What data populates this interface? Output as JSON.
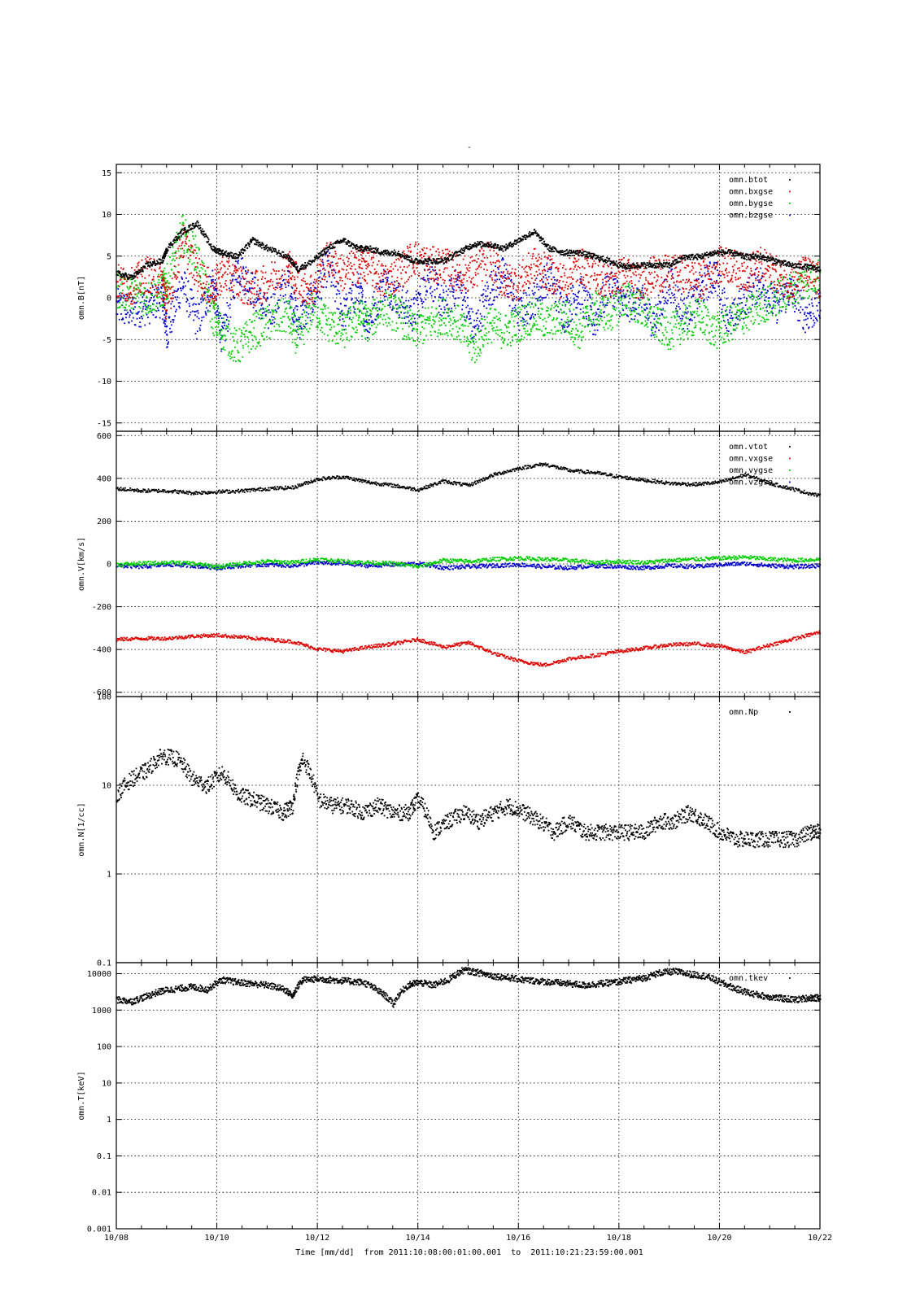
{
  "figure": {
    "title": "-",
    "xaxis_caption": "Time [mm/dd]  from 2011:10:08:00:01:00.001  to  2011:10:21:23:59:00.001"
  },
  "chart_data": [
    {
      "type": "scatter",
      "ylabel": "omn.B[nT]",
      "xlim": [
        "10/08",
        "10/22"
      ],
      "ylim": [
        -16,
        16
      ],
      "yticks": [
        "15",
        "10",
        "5",
        "0",
        "-5",
        "-10",
        "-15"
      ],
      "xticks": [
        "10/08",
        "10/10",
        "10/12",
        "10/14",
        "10/16",
        "10/18",
        "10/20",
        "10/22"
      ],
      "grid": true,
      "legend": "top-right",
      "series": [
        {
          "name": "omn.btot",
          "color": "#000000",
          "x": [
            0,
            0.3,
            0.6,
            0.9,
            1.0,
            1.3,
            1.6,
            1.9,
            2.1,
            2.4,
            2.7,
            3.0,
            3.4,
            3.6,
            3.9,
            4.2,
            4.5,
            4.8,
            5.0,
            5.3,
            5.6,
            5.9,
            6.2,
            6.5,
            6.8,
            7.1,
            7.4,
            7.7,
            8.0,
            8.3,
            8.6,
            8.9,
            9.2,
            9.5,
            9.8,
            10.1,
            10.4,
            10.7,
            11.0,
            11.3,
            11.6,
            11.9,
            12.2,
            12.5,
            12.8,
            13.1,
            13.4,
            13.7,
            14.0
          ],
          "values": [
            3,
            2.5,
            4,
            4.5,
            6,
            8,
            9,
            6,
            5.5,
            5,
            7,
            6,
            5,
            3.5,
            4.5,
            6,
            7,
            6,
            6,
            5.5,
            5.5,
            4.5,
            4.5,
            4.5,
            5.5,
            6.5,
            6.5,
            6,
            7,
            8,
            6,
            5.5,
            5.5,
            5,
            4.5,
            3.8,
            4,
            4,
            4,
            5,
            5,
            5.5,
            5.5,
            5,
            5,
            4.5,
            4,
            3.8,
            3.5
          ]
        },
        {
          "name": "omn.bxgse",
          "color": "#dd0000",
          "x": [
            0,
            0.3,
            0.6,
            0.9,
            1.0,
            1.3,
            1.6,
            1.9,
            2.1,
            2.4,
            2.7,
            3.0,
            3.4,
            3.6,
            3.9,
            4.2,
            4.5,
            4.8,
            5.0,
            5.3,
            5.6,
            5.9,
            6.2,
            6.5,
            6.8,
            7.1,
            7.4,
            7.7,
            8.0,
            8.3,
            8.6,
            8.9,
            9.2,
            9.5,
            9.8,
            10.1,
            10.4,
            10.7,
            11.0,
            11.3,
            11.6,
            11.9,
            12.2,
            12.5,
            12.8,
            13.1,
            13.4,
            13.7,
            14.0
          ],
          "values": [
            2,
            1.5,
            3,
            2,
            -1,
            7,
            3,
            1,
            3,
            2,
            1,
            2,
            4,
            2,
            1,
            5,
            3,
            4,
            4,
            2,
            3,
            5,
            4,
            4,
            3,
            3,
            5,
            2,
            2,
            4,
            3,
            2,
            4,
            3,
            2,
            3,
            2,
            3,
            3,
            3,
            2,
            4,
            4,
            3,
            4,
            3,
            2,
            3,
            2
          ]
        },
        {
          "name": "omn.bygse",
          "color": "#00cc00",
          "x": [
            0,
            0.3,
            0.6,
            0.9,
            1.0,
            1.3,
            1.6,
            1.9,
            2.1,
            2.4,
            2.7,
            3.0,
            3.4,
            3.6,
            3.9,
            4.2,
            4.5,
            4.8,
            5.0,
            5.3,
            5.6,
            5.9,
            6.2,
            6.5,
            6.8,
            7.1,
            7.4,
            7.7,
            8.0,
            8.3,
            8.6,
            8.9,
            9.2,
            9.5,
            9.8,
            10.1,
            10.4,
            10.7,
            11.0,
            11.3,
            11.6,
            11.9,
            12.2,
            12.5,
            12.8,
            13.1,
            13.4,
            13.7,
            14.0
          ],
          "values": [
            1,
            0.5,
            0,
            1,
            2,
            8,
            5,
            -2,
            -4,
            -6,
            -4,
            -3,
            -2,
            -5,
            -1,
            -3,
            -4,
            -2,
            -3,
            -1,
            -2,
            -4,
            -3,
            -2,
            -3,
            -6,
            -3,
            -4,
            -3,
            -2,
            -3,
            -2,
            -4,
            -1,
            -2,
            0,
            -1,
            -3,
            -4,
            -3,
            -2,
            -4,
            -3,
            -2,
            -1,
            0,
            1,
            2,
            3
          ]
        },
        {
          "name": "omn.bzgse",
          "color": "#0000cc",
          "x": [
            0,
            0.3,
            0.6,
            0.9,
            1.0,
            1.3,
            1.6,
            1.9,
            2.1,
            2.4,
            2.7,
            3.0,
            3.4,
            3.6,
            3.9,
            4.2,
            4.5,
            4.8,
            5.0,
            5.3,
            5.6,
            5.9,
            6.2,
            6.5,
            6.8,
            7.1,
            7.4,
            7.7,
            8.0,
            8.3,
            8.6,
            8.9,
            9.2,
            9.5,
            9.8,
            10.1,
            10.4,
            10.7,
            11.0,
            11.3,
            11.6,
            11.9,
            12.2,
            12.5,
            12.8,
            13.1,
            13.4,
            13.7,
            14.0
          ],
          "values": [
            -1,
            -1.5,
            -1,
            0,
            -4,
            2,
            -3,
            2,
            -5,
            4,
            1,
            -2,
            2,
            -3,
            0,
            4,
            -2,
            1,
            -3,
            2,
            0,
            -2,
            3,
            -1,
            2,
            -4,
            1,
            3,
            -2,
            0,
            3,
            -2,
            1,
            -3,
            2,
            -1,
            0,
            -3,
            2,
            -2,
            1,
            3,
            -3,
            0,
            2,
            -1,
            1,
            -2,
            -1
          ]
        }
      ]
    },
    {
      "type": "scatter",
      "ylabel": "omn.V[km/s]",
      "xlim": [
        "10/08",
        "10/22"
      ],
      "ylim": [
        -620,
        620
      ],
      "yticks": [
        "600",
        "400",
        "200",
        "0",
        "-200",
        "-400",
        "-600"
      ],
      "xticks": [
        "10/08",
        "10/10",
        "10/12",
        "10/14",
        "10/16",
        "10/18",
        "10/20",
        "10/22"
      ],
      "grid": true,
      "legend": "top-right",
      "series": [
        {
          "name": "omn.vtot",
          "color": "#000000",
          "x": [
            0,
            0.5,
            1.0,
            1.5,
            2.0,
            2.5,
            3.0,
            3.5,
            4.0,
            4.5,
            5.0,
            5.5,
            6.0,
            6.5,
            7.0,
            7.5,
            8.0,
            8.5,
            9.0,
            9.5,
            10.0,
            10.5,
            11.0,
            11.5,
            12.0,
            12.5,
            13.0,
            13.5,
            14.0
          ],
          "values": [
            355,
            345,
            345,
            335,
            340,
            345,
            355,
            360,
            400,
            410,
            385,
            370,
            350,
            390,
            370,
            420,
            450,
            470,
            440,
            430,
            410,
            395,
            380,
            375,
            385,
            420,
            380,
            350,
            320
          ]
        },
        {
          "name": "omn.vxgse",
          "color": "#dd0000",
          "x": [
            0,
            0.5,
            1.0,
            1.5,
            2.0,
            2.5,
            3.0,
            3.5,
            4.0,
            4.5,
            5.0,
            5.5,
            6.0,
            6.5,
            7.0,
            7.5,
            8.0,
            8.5,
            9.0,
            9.5,
            10.0,
            10.5,
            11.0,
            11.5,
            12.0,
            12.5,
            13.0,
            13.5,
            14.0
          ],
          "values": [
            -350,
            -345,
            -345,
            -335,
            -330,
            -340,
            -350,
            -360,
            -395,
            -405,
            -385,
            -370,
            -350,
            -385,
            -365,
            -415,
            -450,
            -470,
            -440,
            -425,
            -405,
            -390,
            -375,
            -370,
            -380,
            -410,
            -375,
            -345,
            -315
          ]
        },
        {
          "name": "omn.vygse",
          "color": "#00cc00",
          "x": [
            0,
            0.5,
            1.0,
            1.5,
            2.0,
            2.5,
            3.0,
            3.5,
            4.0,
            4.5,
            5.0,
            5.5,
            6.0,
            6.5,
            7.0,
            7.5,
            8.0,
            8.5,
            9.0,
            9.5,
            10.0,
            10.5,
            11.0,
            11.5,
            12.0,
            12.5,
            13.0,
            13.5,
            14.0
          ],
          "values": [
            0,
            5,
            10,
            5,
            -10,
            5,
            15,
            10,
            25,
            15,
            10,
            5,
            -10,
            20,
            15,
            25,
            30,
            25,
            20,
            10,
            15,
            10,
            20,
            25,
            30,
            35,
            25,
            20,
            25
          ]
        },
        {
          "name": "omn.vzgse",
          "color": "#0000cc",
          "x": [
            0,
            0.5,
            1.0,
            1.5,
            2.0,
            2.5,
            3.0,
            3.5,
            4.0,
            4.5,
            5.0,
            5.5,
            6.0,
            6.5,
            7.0,
            7.5,
            8.0,
            8.5,
            9.0,
            9.5,
            10.0,
            10.5,
            11.0,
            11.5,
            12.0,
            12.5,
            13.0,
            13.5,
            14.0
          ],
          "values": [
            -5,
            -10,
            0,
            -5,
            -15,
            -5,
            0,
            -5,
            10,
            5,
            -5,
            0,
            5,
            -15,
            -10,
            -5,
            0,
            -10,
            -15,
            -5,
            -10,
            -15,
            -5,
            -10,
            0,
            5,
            -5,
            -10,
            -5
          ]
        }
      ]
    },
    {
      "type": "scatter",
      "ylabel": "omn.N[1/cc]",
      "yscale": "log",
      "xlim": [
        "10/08",
        "10/22"
      ],
      "ylim": [
        0.1,
        100
      ],
      "yticks": [
        "100",
        "10",
        "1",
        "0.1"
      ],
      "xticks": [
        "10/08",
        "10/10",
        "10/12",
        "10/14",
        "10/16",
        "10/18",
        "10/20",
        "10/22"
      ],
      "grid": true,
      "legend": "top-right",
      "series": [
        {
          "name": "omn.Np",
          "color": "#000000",
          "x": [
            0,
            0.3,
            0.6,
            0.9,
            1.2,
            1.5,
            1.8,
            2.1,
            2.4,
            2.7,
            3.0,
            3.3,
            3.5,
            3.7,
            4.0,
            4.3,
            4.6,
            4.9,
            5.2,
            5.5,
            5.8,
            6.0,
            6.3,
            6.6,
            6.9,
            7.2,
            7.5,
            7.8,
            8.1,
            8.4,
            8.7,
            9.0,
            9.3,
            9.6,
            9.9,
            10.2,
            10.5,
            10.8,
            11.1,
            11.4,
            11.7,
            12.0,
            12.3,
            12.6,
            12.9,
            13.2,
            13.5,
            13.8,
            14.0
          ],
          "values": [
            8,
            12,
            15,
            22,
            20,
            12,
            10,
            14,
            8,
            7,
            6,
            5,
            6,
            20,
            7,
            6,
            6,
            5,
            6,
            5,
            5,
            7,
            3,
            4,
            5,
            4,
            5,
            6,
            5,
            4,
            3,
            4,
            3,
            3,
            3,
            3,
            3,
            4,
            4,
            5,
            4,
            3,
            2.5,
            2.5,
            2.5,
            2.5,
            2.5,
            3,
            3
          ]
        }
      ]
    },
    {
      "type": "scatter",
      "ylabel": "omn.T[keV]",
      "yscale": "log",
      "xlim": [
        "10/08",
        "10/22"
      ],
      "ylim": [
        0.001,
        20000
      ],
      "yticks": [
        "10000",
        "1000",
        "100",
        "10",
        "1",
        "0.1",
        "0.01",
        "0.001"
      ],
      "xticks": [
        "10/08",
        "10/10",
        "10/12",
        "10/14",
        "10/16",
        "10/18",
        "10/20",
        "10/22"
      ],
      "grid": true,
      "legend": "top-right",
      "series": [
        {
          "name": "omn.tkev",
          "color": "#000000",
          "x": [
            0,
            0.3,
            0.6,
            0.9,
            1.2,
            1.5,
            1.8,
            2.1,
            2.4,
            2.7,
            3.0,
            3.3,
            3.5,
            3.7,
            4.0,
            4.3,
            4.6,
            4.9,
            5.2,
            5.5,
            5.8,
            6.0,
            6.3,
            6.6,
            6.9,
            7.2,
            7.5,
            7.8,
            8.1,
            8.4,
            8.7,
            9.0,
            9.3,
            9.6,
            9.9,
            10.2,
            10.5,
            10.8,
            11.1,
            11.4,
            11.7,
            12.0,
            12.3,
            12.6,
            12.9,
            13.2,
            13.5,
            13.8,
            14.0
          ],
          "values": [
            2000,
            1800,
            2500,
            3500,
            4000,
            4500,
            3800,
            7000,
            6000,
            5500,
            5000,
            4000,
            2500,
            7000,
            7500,
            7000,
            6500,
            6000,
            3500,
            1500,
            5000,
            6000,
            5000,
            7000,
            13000,
            11000,
            9000,
            8000,
            7000,
            6500,
            6000,
            5500,
            5000,
            5500,
            6000,
            7000,
            8000,
            11000,
            12000,
            10000,
            9000,
            6000,
            4000,
            3000,
            2500,
            2200,
            2000,
            2300,
            2200
          ]
        }
      ]
    }
  ]
}
